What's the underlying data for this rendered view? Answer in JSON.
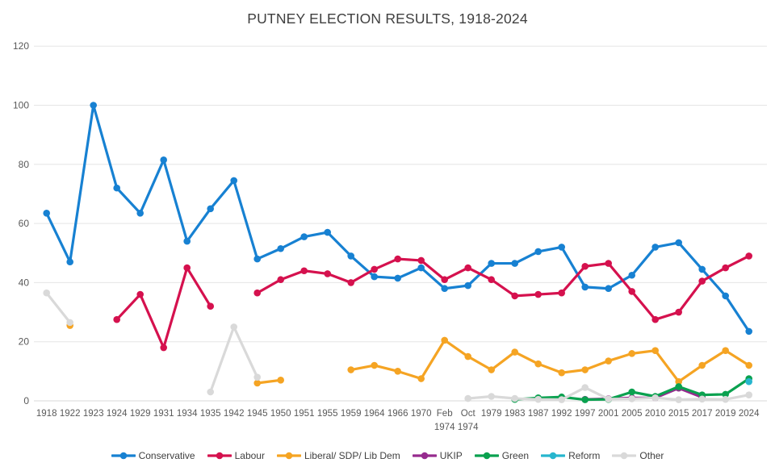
{
  "chart_data": {
    "type": "line",
    "title": "PUTNEY ELECTION RESULTS, 1918-2024",
    "xlabel": "",
    "ylabel": "",
    "ylim": [
      0,
      120
    ],
    "ytick_step": 20,
    "grid": true,
    "legend_position": "bottom",
    "categories": [
      "1918",
      "1922",
      "1923",
      "1924",
      "1929",
      "1931",
      "1934",
      "1935",
      "1942",
      "1945",
      "1950",
      "1951",
      "1955",
      "1959",
      "1964",
      "1966",
      "1970",
      "Feb 1974",
      "Oct 1974",
      "1979",
      "1983",
      "1987",
      "1992",
      "1997",
      "2001",
      "2005",
      "2010",
      "2015",
      "2017",
      "2019",
      "2024"
    ],
    "series": [
      {
        "name": "Conservative",
        "color": "#1781D2",
        "values": [
          63.5,
          47,
          100,
          72,
          63.5,
          81.5,
          54,
          65,
          74.5,
          48,
          51.5,
          55.5,
          57,
          49,
          42,
          41.5,
          45,
          38,
          39,
          46.5,
          46.5,
          50.5,
          52,
          38.5,
          38,
          42.5,
          52,
          53.5,
          44.5,
          35.5,
          23.5
        ]
      },
      {
        "name": "Labour",
        "color": "#D5114E",
        "values": [
          null,
          null,
          null,
          27.5,
          36,
          18,
          45,
          32,
          null,
          36.5,
          41,
          44,
          43,
          40,
          44.5,
          48,
          47.5,
          41,
          45,
          41,
          35.5,
          36,
          36.5,
          45.5,
          46.5,
          37,
          27.5,
          30,
          40.5,
          45,
          49
        ]
      },
      {
        "name": "Liberal/ SDP/ Lib Dem",
        "color": "#F5A423",
        "values": [
          null,
          25.5,
          null,
          null,
          null,
          null,
          null,
          null,
          null,
          6,
          7,
          null,
          null,
          10.5,
          12,
          10,
          7.5,
          20.5,
          15,
          10.5,
          16.5,
          12.5,
          9.5,
          10.5,
          13.5,
          16,
          17,
          6.5,
          12,
          17,
          12
        ]
      },
      {
        "name": "UKIP",
        "color": "#962B8E",
        "values": [
          null,
          null,
          null,
          null,
          null,
          null,
          null,
          null,
          null,
          null,
          null,
          null,
          null,
          null,
          null,
          null,
          null,
          null,
          null,
          null,
          null,
          null,
          null,
          0.5,
          0.7,
          1,
          1,
          4.3,
          1.2,
          null,
          null
        ]
      },
      {
        "name": "Green",
        "color": "#0AA14F",
        "values": [
          null,
          null,
          null,
          null,
          null,
          null,
          null,
          null,
          null,
          null,
          null,
          null,
          null,
          null,
          null,
          null,
          null,
          null,
          null,
          null,
          0.5,
          1,
          1.3,
          0.4,
          0.5,
          3,
          1.5,
          4.8,
          2,
          2.2,
          7.5
        ]
      },
      {
        "name": "Reform",
        "color": "#27B6CE",
        "values": [
          null,
          null,
          null,
          null,
          null,
          null,
          null,
          null,
          null,
          null,
          null,
          null,
          null,
          null,
          null,
          null,
          null,
          null,
          null,
          null,
          null,
          null,
          null,
          null,
          null,
          null,
          null,
          null,
          null,
          null,
          6.5
        ]
      },
      {
        "name": "Other",
        "color": "#D9D9D9",
        "values": [
          36.5,
          26.5,
          null,
          null,
          null,
          null,
          null,
          3,
          25,
          8,
          null,
          null,
          null,
          null,
          null,
          null,
          null,
          null,
          0.8,
          1.5,
          0.8,
          0.5,
          0.4,
          4.5,
          0.6,
          0.7,
          1,
          0.4,
          0.6,
          0.5,
          2
        ]
      }
    ]
  },
  "style": {
    "background": "#FFFFFF",
    "grid_color": "#E5E5E5",
    "axis_line_color": "#D9D9D9",
    "axis_text_color": "#595959",
    "title_color": "#3F3F3F",
    "legend_text_color": "#404040"
  }
}
